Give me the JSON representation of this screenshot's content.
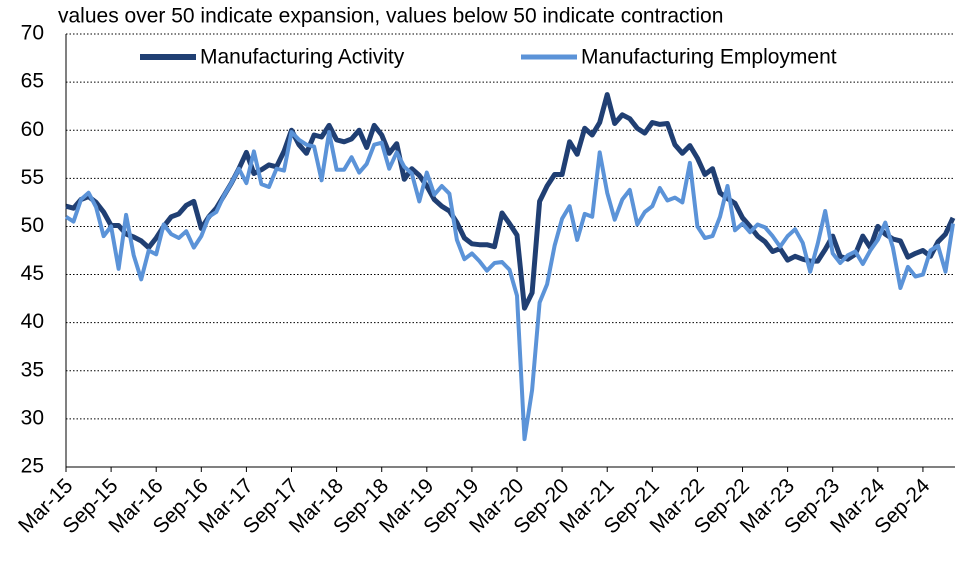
{
  "chart_data": {
    "type": "line",
    "subtitle": "values over 50 indicate expansion, values below 50 indicate contraction",
    "categories": [
      "Mar-15",
      null,
      null,
      null,
      null,
      null,
      "Sep-15",
      null,
      null,
      null,
      null,
      null,
      "Mar-16",
      null,
      null,
      null,
      null,
      null,
      "Sep-16",
      null,
      null,
      null,
      null,
      null,
      "Mar-17",
      null,
      null,
      null,
      null,
      null,
      "Sep-17",
      null,
      null,
      null,
      null,
      null,
      "Mar-18",
      null,
      null,
      null,
      null,
      null,
      "Sep-18",
      null,
      null,
      null,
      null,
      null,
      "Mar-19",
      null,
      null,
      null,
      null,
      null,
      "Sep-19",
      null,
      null,
      null,
      null,
      null,
      "Mar-20",
      null,
      null,
      null,
      null,
      null,
      "Sep-20",
      null,
      null,
      null,
      null,
      null,
      "Mar-21",
      null,
      null,
      null,
      null,
      null,
      "Sep-21",
      null,
      null,
      null,
      null,
      null,
      "Mar-22",
      null,
      null,
      null,
      null,
      null,
      "Sep-22",
      null,
      null,
      null,
      null,
      null,
      "Mar-23",
      null,
      null,
      null,
      null,
      null,
      "Sep-23",
      null,
      null,
      null,
      null,
      null,
      "Mar-24",
      null,
      null,
      null,
      null,
      null,
      "Sep-24",
      null,
      null,
      null,
      null
    ],
    "series": [
      {
        "name": "Manufacturing Activity",
        "color": "#203f73",
        "values": [
          52.1,
          51.9,
          52.8,
          53.1,
          52.5,
          51.5,
          50.1,
          50.1,
          49.2,
          48.9,
          48.5,
          47.8,
          48.8,
          50.0,
          51.0,
          51.3,
          52.2,
          52.6,
          49.8,
          51.0,
          51.9,
          53.2,
          54.5,
          56.0,
          57.7,
          55.5,
          55.9,
          56.4,
          56.2,
          57.8,
          60.0,
          58.5,
          57.6,
          59.5,
          59.3,
          60.5,
          59.0,
          58.8,
          59.1,
          60.0,
          58.2,
          60.5,
          59.5,
          57.6,
          58.6,
          54.9,
          56.0,
          55.3,
          54.2,
          52.8,
          52.1,
          51.6,
          50.4,
          48.8,
          48.2,
          48.1,
          48.1,
          47.9,
          51.4,
          50.3,
          49.1,
          41.5,
          43.1,
          52.6,
          54.2,
          55.4,
          55.4,
          58.8,
          57.5,
          60.2,
          59.5,
          60.8,
          63.7,
          60.7,
          61.6,
          61.2,
          60.2,
          59.7,
          60.8,
          60.6,
          60.7,
          58.5,
          57.6,
          58.4,
          57.1,
          55.4,
          56.0,
          53.5,
          52.9,
          52.4,
          50.9,
          50.0,
          49.0,
          48.4,
          47.4,
          47.7,
          46.5,
          46.9,
          46.6,
          46.4,
          46.4,
          47.6,
          49.0,
          46.9,
          46.6,
          47.1,
          49.0,
          47.8,
          50.0,
          49.2,
          48.7,
          48.5,
          46.8,
          47.2,
          47.5,
          46.9,
          48.4,
          49.2,
          50.9
        ]
      },
      {
        "name": "Manufacturing Employment",
        "color": "#5b93d8",
        "values": [
          51.0,
          50.5,
          52.8,
          53.5,
          52.0,
          49.0,
          50.0,
          45.6,
          51.2,
          47.0,
          44.5,
          47.5,
          47.1,
          50.2,
          49.2,
          48.8,
          49.5,
          47.8,
          49.0,
          51.0,
          51.5,
          53.2,
          54.5,
          56.0,
          54.5,
          57.8,
          54.4,
          54.1,
          56.0,
          55.8,
          59.8,
          59.0,
          58.5,
          58.3,
          54.8,
          59.8,
          55.9,
          55.9,
          57.2,
          55.6,
          56.5,
          58.5,
          58.7,
          56.0,
          57.7,
          56.2,
          55.5,
          52.6,
          55.6,
          53.3,
          54.2,
          53.4,
          48.6,
          46.6,
          47.2,
          46.4,
          45.4,
          46.2,
          46.3,
          45.5,
          42.8,
          27.9,
          33.0,
          42.1,
          44.0,
          48.0,
          50.8,
          52.1,
          48.6,
          51.3,
          51.0,
          57.7,
          53.5,
          50.7,
          52.8,
          53.8,
          50.2,
          51.5,
          52.1,
          54.0,
          52.7,
          53.0,
          52.5,
          56.6,
          50.0,
          48.8,
          49.0,
          51.0,
          54.2,
          49.6,
          50.3,
          49.4,
          50.2,
          49.9,
          49.0,
          47.9,
          49.0,
          49.7,
          48.3,
          45.3,
          48.2,
          51.6,
          47.2,
          46.2,
          47.0,
          47.4,
          46.1,
          47.5,
          48.6,
          50.4,
          47.8,
          43.6,
          45.8,
          44.8,
          45.0,
          47.5,
          48.0,
          45.3,
          50.3
        ]
      }
    ],
    "ylim": [
      25,
      70
    ],
    "yticks": [
      25,
      30,
      35,
      40,
      45,
      50,
      55,
      60,
      65,
      70
    ],
    "grid": true,
    "legend": "top"
  }
}
